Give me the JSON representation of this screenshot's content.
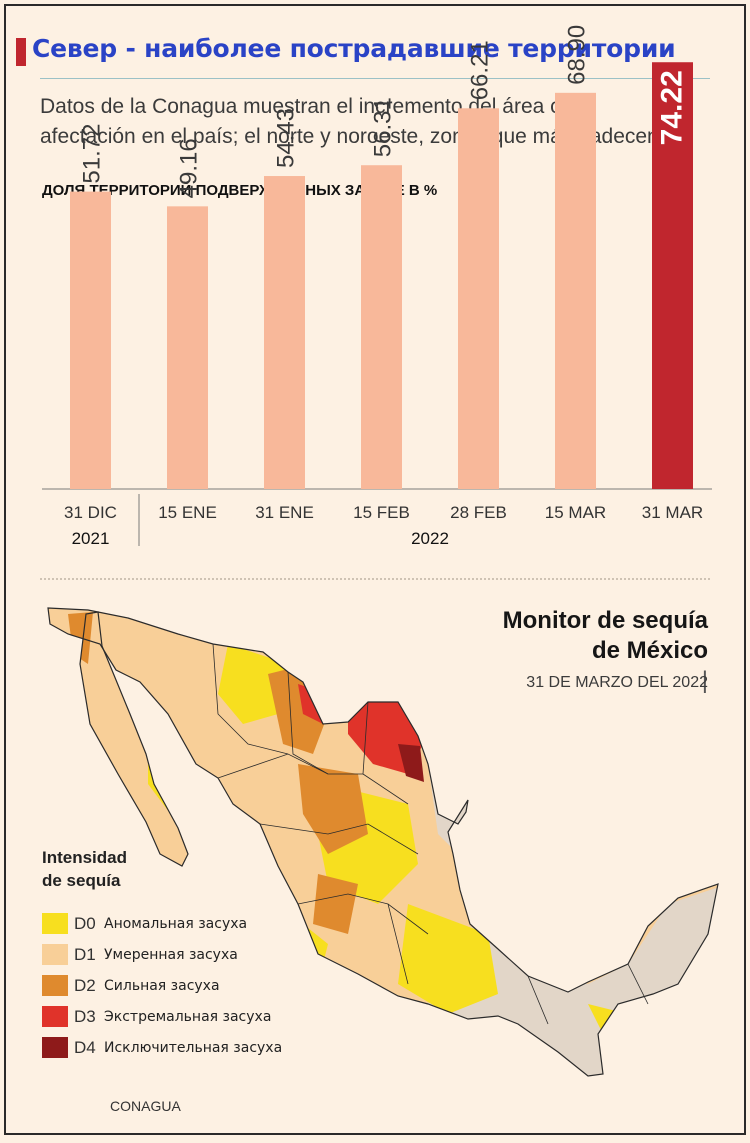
{
  "header": {
    "title": "Север - наиболее пострадавшие территории",
    "subtitle_line1": "Datos de la Conagua muestran el incremento del área con",
    "subtitle_line2": "afectación en el país; el norte y noroeste, zonas que más padecen."
  },
  "chart_data": {
    "type": "bar",
    "title": "ДОЛЯ ТЕРРИТОРИЙ ПОДВЕРЖННННЫХ ЗАСУХЕ В %",
    "categories": [
      "31 DIC",
      "15 ENE",
      "31 ENE",
      "15 FEB",
      "28 FEB",
      "15 MAR",
      "31 MAR"
    ],
    "values": [
      51.72,
      49.16,
      54.43,
      56.31,
      66.21,
      68.9,
      74.22
    ],
    "value_labels": [
      "51.72",
      "49.16",
      "54.43",
      "56.31",
      "66.21",
      "68.90",
      "74.22"
    ],
    "year_groups": [
      {
        "label": "2021",
        "from": 0,
        "to": 0
      },
      {
        "label": "2022",
        "from": 1,
        "to": 6
      }
    ],
    "highlight_index": 6,
    "colors": {
      "bar": "#f8b89a",
      "highlight": "#c0262e"
    },
    "ylim": [
      0,
      80
    ],
    "grid": false,
    "legend": "none"
  },
  "map": {
    "title_line1": "Monitor de sequía",
    "title_line2": "de México",
    "title_bar": "|",
    "date": "31 DE MARZO DEL 2022",
    "legend_title_line1": "Intensidad",
    "legend_title_line2": "de sequía",
    "legend": [
      {
        "code": "D0",
        "label": "Аномальная засуха",
        "color": "#f7df1f"
      },
      {
        "code": "D1",
        "label": "Умеренная засуха",
        "color": "#f8cf98"
      },
      {
        "code": "D2",
        "label": "Сильная засуха",
        "color": "#df8a2e"
      },
      {
        "code": "D3",
        "label": "Экстремальная засуха",
        "color": "#e0332a"
      },
      {
        "code": "D4",
        "label": "Исключительная засуха",
        "color": "#8e1a1a"
      }
    ],
    "no_drought_color": "#e2d6c8",
    "source": "CONAGUA"
  }
}
